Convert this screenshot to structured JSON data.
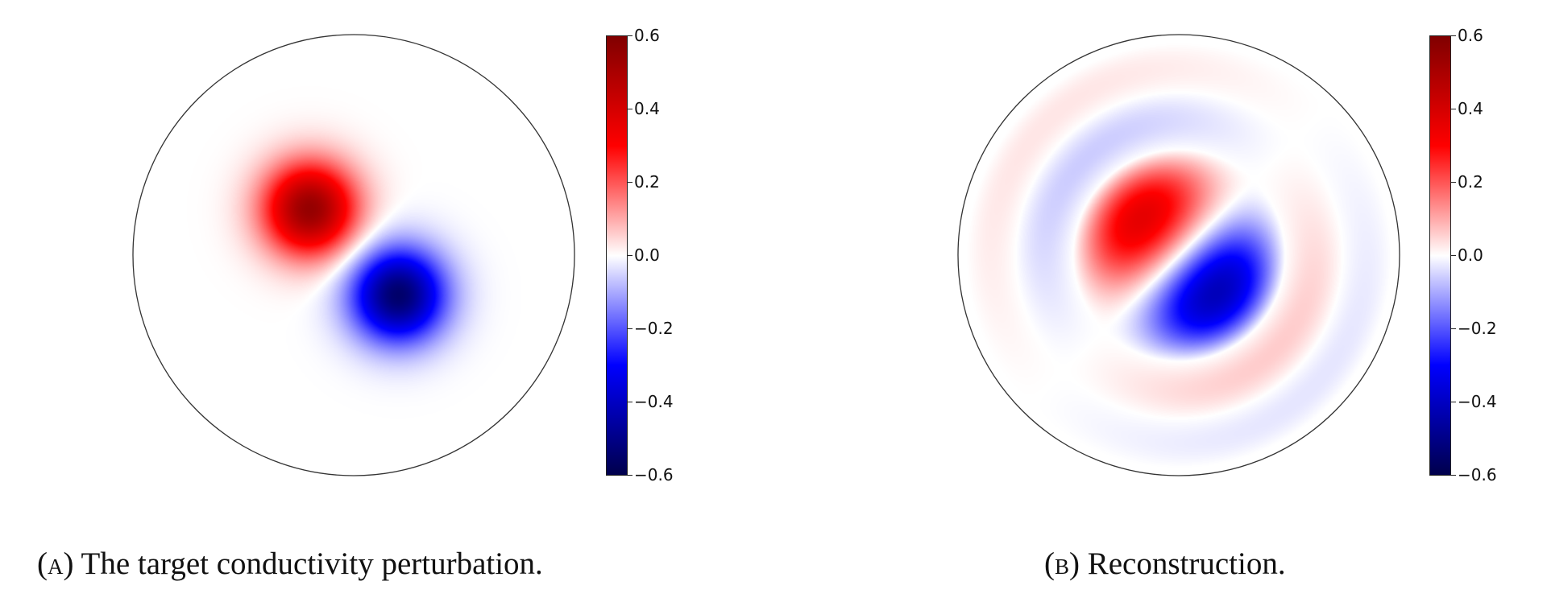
{
  "colormap": {
    "name": "seismic",
    "stops": [
      "#00004c",
      "#0000ff",
      "#ffffff",
      "#ff0000",
      "#800000"
    ]
  },
  "chart_data": [
    {
      "type": "heatmap",
      "domain": "unit disk",
      "clim": [
        -0.6,
        0.6
      ],
      "colorbar_ticks": [
        "0.6",
        "0.4",
        "0.2",
        "0.0",
        "−0.2",
        "−0.4",
        "−0.6"
      ],
      "colorbar_tick_values": [
        0.6,
        0.4,
        0.2,
        0.0,
        -0.2,
        -0.4,
        -0.6
      ],
      "peaks": [
        {
          "sign": "positive",
          "value": 0.55,
          "x": -0.2,
          "y": 0.21
        },
        {
          "sign": "negative",
          "value": -0.55,
          "x": 0.2,
          "y": -0.18
        }
      ],
      "caption_tag": "(a)",
      "caption": "The target conductivity perturbation."
    },
    {
      "type": "heatmap",
      "domain": "unit disk",
      "clim": [
        -0.6,
        0.6
      ],
      "colorbar_ticks": [
        "0.6",
        "0.4",
        "0.2",
        "0.0",
        "−0.2",
        "−0.4",
        "−0.6"
      ],
      "colorbar_tick_values": [
        0.6,
        0.4,
        0.2,
        0.0,
        -0.2,
        -0.4,
        -0.6
      ],
      "peaks": [
        {
          "sign": "positive",
          "value": 0.3,
          "x": -0.2,
          "y": 0.17
        },
        {
          "sign": "negative",
          "value": -0.4,
          "x": 0.17,
          "y": -0.13
        }
      ],
      "caption_tag": "(b)",
      "caption": "Reconstruction."
    }
  ]
}
